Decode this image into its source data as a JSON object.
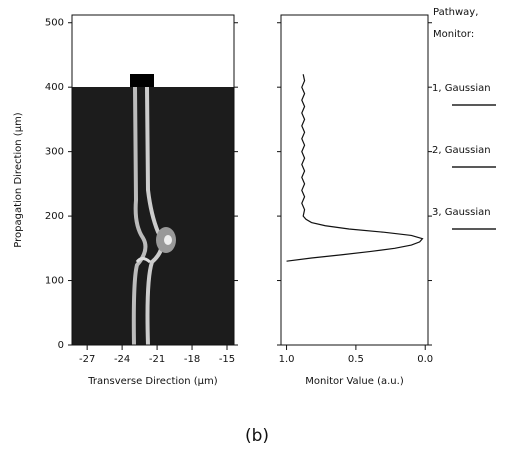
{
  "chart_data": [
    {
      "type": "image",
      "x_label": "Transverse Direction (µm)",
      "y_label": "Propagation Direction (µm)",
      "xlim": [
        -28.3,
        -14.4
      ],
      "xticks": [
        -27,
        -24,
        -21,
        -18,
        -15
      ],
      "ylim": [
        0,
        512
      ],
      "yticks": [
        0,
        100,
        200,
        300,
        400,
        500
      ]
    },
    {
      "type": "line",
      "x_label": "Monitor Value (a.u.)",
      "xlim": [
        1.04,
        -0.02
      ],
      "xticks": [
        {
          "value": 1,
          "label": "1.0"
        },
        0.5,
        {
          "value": 0,
          "label": "0.0"
        }
      ],
      "ylim": [
        0,
        512
      ],
      "yticks": [
        0,
        100,
        200,
        300,
        400,
        500
      ],
      "y": [
        130,
        135,
        140,
        145,
        150,
        155,
        160,
        165,
        170,
        175,
        180,
        185,
        190,
        195,
        200,
        210,
        220,
        230,
        240,
        250,
        260,
        270,
        280,
        290,
        300,
        310,
        320,
        330,
        340,
        350,
        360,
        370,
        380,
        390,
        400,
        410,
        420
      ],
      "series": [
        {
          "color": "#111111",
          "values": [
            1.0,
            0.82,
            0.6,
            0.4,
            0.22,
            0.1,
            0.04,
            0.02,
            0.1,
            0.3,
            0.55,
            0.72,
            0.82,
            0.86,
            0.88,
            0.87,
            0.89,
            0.87,
            0.89,
            0.87,
            0.89,
            0.87,
            0.89,
            0.87,
            0.89,
            0.87,
            0.89,
            0.87,
            0.89,
            0.87,
            0.89,
            0.87,
            0.89,
            0.87,
            0.89,
            0.87,
            0.88
          ]
        }
      ],
      "legend_title": [
        "Pathway,",
        "Monitor:"
      ],
      "legend_entries": [
        "1, Gaussian",
        "2, Gaussian",
        "3, Gaussian"
      ]
    },
    {
      "caption": "(b)"
    }
  ]
}
